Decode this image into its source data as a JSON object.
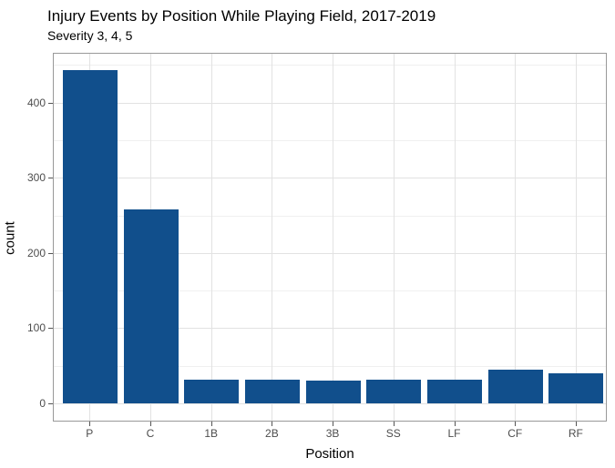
{
  "chart_data": {
    "type": "bar",
    "title": "Injury Events by Position While Playing Field, 2017-2019",
    "subtitle": "Severity 3, 4, 5",
    "xlabel": "Position",
    "ylabel": "count",
    "categories": [
      "P",
      "C",
      "1B",
      "2B",
      "3B",
      "SS",
      "LF",
      "CF",
      "RF"
    ],
    "values": [
      443,
      258,
      31,
      32,
      30,
      32,
      32,
      45,
      40
    ],
    "y_major_ticks": [
      0,
      100,
      200,
      300,
      400
    ],
    "y_minor_ticks": [
      50,
      150,
      250,
      350,
      450
    ],
    "ylim": [
      -22,
      466
    ],
    "grid": "major-and-minor",
    "legend": "none",
    "colors": {
      "bar": "#114F8C",
      "grid_major": "#E2E2E2",
      "grid_minor": "#F0F0F0",
      "panel_border": "#999999",
      "tick_mark": "#555555",
      "tick_label": "#4D4D4D",
      "text": "#000000",
      "background": "#FFFFFF"
    }
  }
}
